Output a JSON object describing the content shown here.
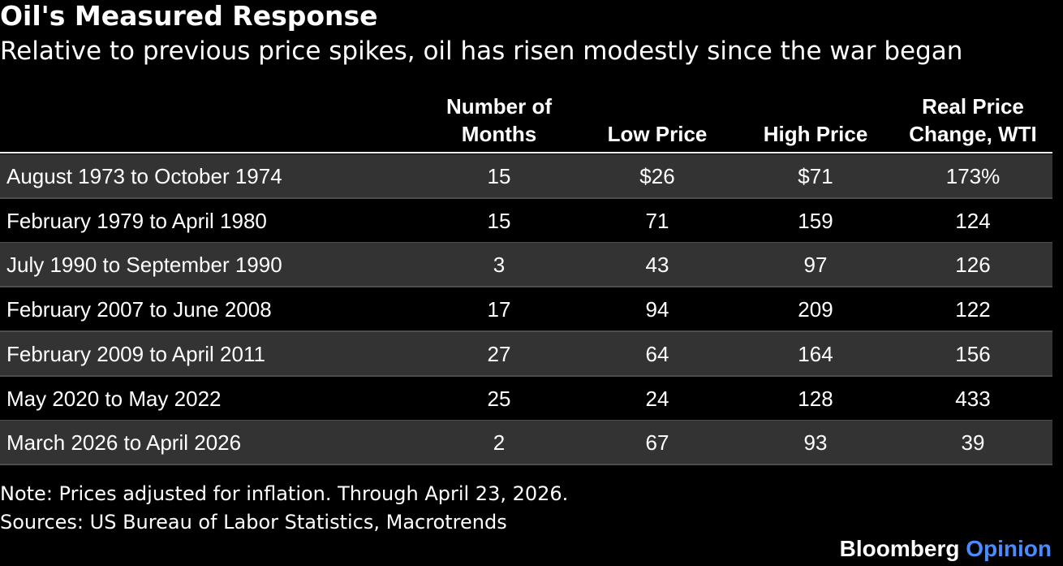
{
  "title": "Oil's Measured Response",
  "subtitle": "Relative to previous price spikes, oil has risen modestly since the war began",
  "chart_data": {
    "type": "table",
    "columns": [
      "",
      "Number of\nMonths",
      "Low Price",
      "High Price",
      "Real Price\nChange, WTI"
    ],
    "rows": [
      [
        "August 1973 to October 1974",
        "15",
        "$26",
        "$71",
        "173%"
      ],
      [
        "February 1979 to April 1980",
        "15",
        "71",
        "159",
        "124"
      ],
      [
        "July 1990 to September 1990",
        "3",
        "43",
        "97",
        "126"
      ],
      [
        "February 2007 to June 2008",
        "17",
        "94",
        "209",
        "122"
      ],
      [
        "February 2009 to April 2011",
        "27",
        "64",
        "164",
        "156"
      ],
      [
        "May 2020 to May 2022",
        "25",
        "24",
        "128",
        "433"
      ],
      [
        "March 2026 to April 2026",
        "2",
        "67",
        "93",
        "39"
      ]
    ]
  },
  "note": "Note: Prices adjusted for inflation. Through April 23, 2026.",
  "sources": "Sources: US Bureau of Labor Statistics, Macrotrends",
  "brand": {
    "name": "Bloomberg",
    "suffix": "Opinion",
    "suffix_color": "#4a8cff"
  },
  "colors": {
    "background": "#000000",
    "row_shaded": "#333333",
    "text": "#ffffff"
  }
}
